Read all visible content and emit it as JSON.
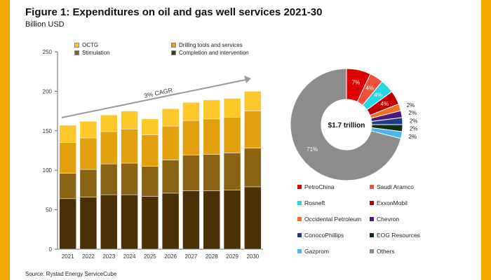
{
  "figure": {
    "title": "Figure 1: Expenditures on oil and gas well services 2021-30",
    "unit": "Billion USD",
    "source": "Source: Rystad Energy ServiceCube"
  },
  "chart_data": [
    {
      "type": "bar",
      "stacked": true,
      "categories": [
        "2021",
        "2022",
        "2023",
        "2024",
        "2025",
        "2026",
        "2027",
        "2028",
        "2029",
        "2030"
      ],
      "series": [
        {
          "name": "Completion and intervention",
          "color": "#4a3106",
          "values": [
            64,
            66,
            69,
            69,
            67,
            71,
            74,
            74,
            75,
            79
          ]
        },
        {
          "name": "Stimulation",
          "color": "#8a6414",
          "values": [
            32,
            35,
            39,
            40,
            38,
            42,
            45,
            46,
            47,
            49
          ]
        },
        {
          "name": "Drilling tools and services",
          "color": "#e3a00e",
          "values": [
            39,
            40,
            41,
            43,
            40,
            43,
            44,
            45,
            45,
            47
          ]
        },
        {
          "name": "OCTG",
          "color": "#ffc82a",
          "values": [
            22,
            21,
            21,
            23,
            20,
            22,
            23,
            24,
            24,
            25
          ]
        }
      ],
      "ylim": [
        0,
        250
      ],
      "yticks": [
        0,
        50,
        100,
        150,
        200,
        250
      ],
      "xlabel": "",
      "ylabel": "Billion USD",
      "legend_order": [
        "OCTG",
        "Drilling tools and services",
        "Stimulation",
        "Completion and intervention"
      ],
      "annotation": {
        "text": "3% CAGR"
      }
    },
    {
      "type": "pie",
      "donut": true,
      "center_label": "$1.7 trillion",
      "slices": [
        {
          "name": "PetroChina",
          "value": 7,
          "color": "#e00000",
          "label": "7%"
        },
        {
          "name": "Saudi Aramco",
          "value": 4,
          "color": "#f0503c",
          "label": "4%"
        },
        {
          "name": "Rosneft",
          "value": 4,
          "color": "#26d7e3",
          "label": "4%"
        },
        {
          "name": "ExxonMobil",
          "value": 4,
          "color": "#c00000",
          "label": "4%"
        },
        {
          "name": "Occidental Petroleum",
          "value": 2,
          "color": "#f07020",
          "label": "2%"
        },
        {
          "name": "Chevron",
          "value": 2,
          "color": "#4a1a7a",
          "label": "2%"
        },
        {
          "name": "ConocoPhillips",
          "value": 2,
          "color": "#1e3a8c",
          "label": "2%"
        },
        {
          "name": "EOG Resources",
          "value": 2,
          "color": "#103010",
          "label": "2%"
        },
        {
          "name": "Gazprom",
          "value": 2,
          "color": "#4ab4f0",
          "label": "2%"
        },
        {
          "name": "Others",
          "value": 71,
          "color": "#8c8c8c",
          "label": "71%"
        }
      ]
    }
  ]
}
